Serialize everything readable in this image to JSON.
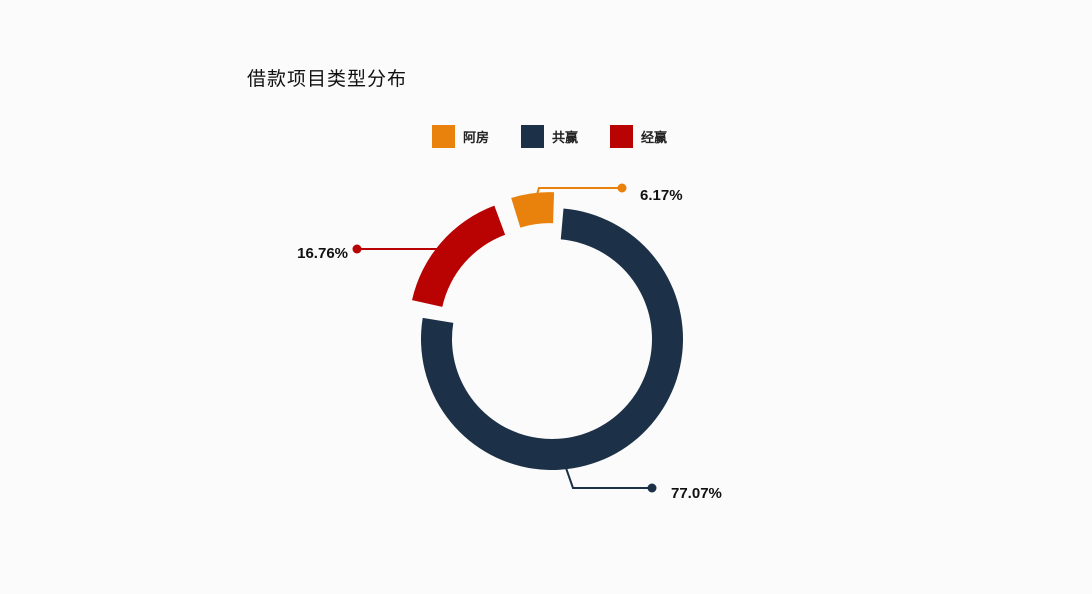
{
  "chart_data": {
    "type": "pie",
    "variant": "donut",
    "title": "借款项目类型分布",
    "legend_placement": "top",
    "slices": [
      {
        "name": "阿房",
        "value": 6.17,
        "label": "6.17%",
        "color": "#e8820c"
      },
      {
        "name": "共赢",
        "value": 77.07,
        "label": "77.07%",
        "color": "#1c3147"
      },
      {
        "name": "经赢",
        "value": 16.76,
        "label": "16.76%",
        "color": "#b90202"
      }
    ]
  }
}
